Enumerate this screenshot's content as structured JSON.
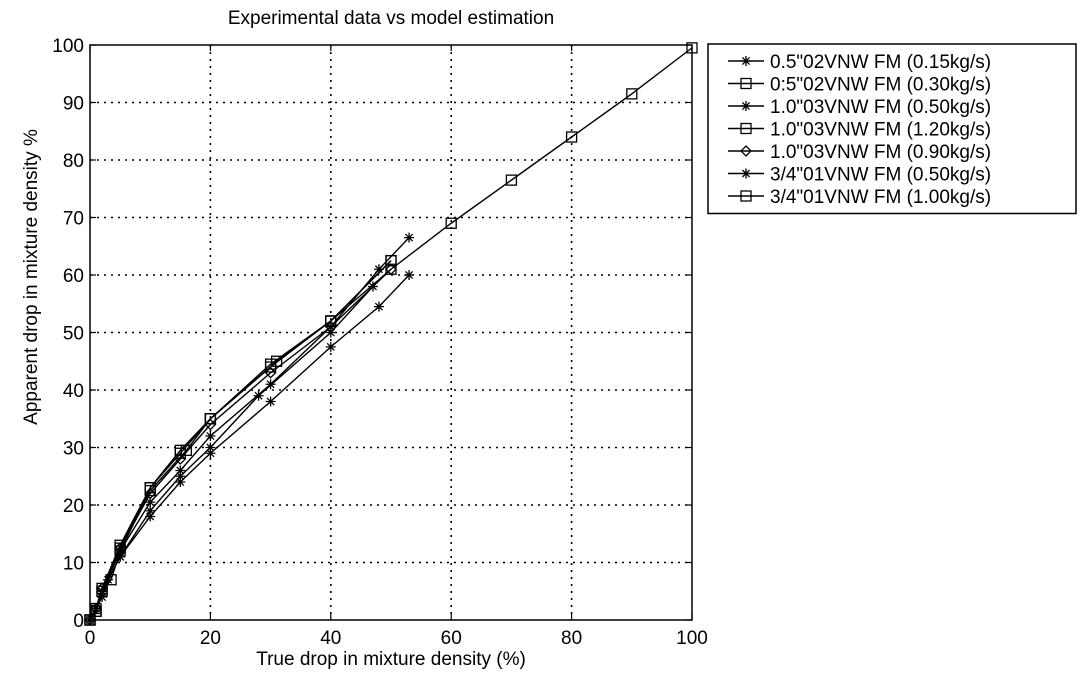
{
  "chart_data": {
    "type": "line",
    "title": "Experimental data vs model estimation",
    "xlabel": "True drop in mixture density (%)",
    "ylabel": "Apparent drop in mixture density %",
    "xlim": [
      0,
      100
    ],
    "ylim": [
      0,
      100
    ],
    "xticks": [
      0,
      20,
      40,
      60,
      80,
      100
    ],
    "yticks": [
      0,
      10,
      20,
      30,
      40,
      50,
      60,
      70,
      80,
      90,
      100
    ],
    "grid": true,
    "legend_position": "outside-top-right",
    "series": [
      {
        "name": "0.5\"02VNW FM (0.15kg/s)",
        "marker": "star",
        "color": "#000000",
        "x": [
          0,
          1,
          2,
          3,
          5,
          10,
          15,
          20,
          30,
          40,
          48,
          53
        ],
        "y": [
          0,
          2,
          4,
          7,
          11,
          18,
          24,
          29,
          38,
          47.5,
          54.5,
          60
        ]
      },
      {
        "name": "0:5\"02VNW FM (0.30kg/s)",
        "marker": "square",
        "color": "#000000",
        "x": [
          0,
          1,
          2,
          3.5,
          5,
          10,
          16,
          20,
          30,
          40,
          50
        ],
        "y": [
          0,
          1.5,
          5,
          7,
          12,
          22.5,
          29.5,
          35,
          44,
          52,
          62.5
        ]
      },
      {
        "name": "1.0\"03VNW FM (0.50kg/s)",
        "marker": "star",
        "color": "#000000",
        "x": [
          0,
          1,
          2,
          5,
          10,
          15,
          20,
          30,
          40,
          48,
          53
        ],
        "y": [
          0,
          2,
          5,
          12,
          20.5,
          26,
          32,
          41,
          51,
          61,
          66.5
        ]
      },
      {
        "name": "1.0\"03VNW FM (1.20kg/s)",
        "marker": "square",
        "color": "#000000",
        "x": [
          0,
          1,
          2,
          5,
          10,
          15,
          20,
          31,
          40,
          50
        ],
        "y": [
          0,
          1.5,
          5,
          12.5,
          23,
          29,
          35,
          45,
          52,
          62.5
        ]
      },
      {
        "name": "1.0\"03VNW FM (0.90kg/s)",
        "marker": "diamond",
        "color": "#000000",
        "x": [
          0,
          1,
          2,
          5,
          10,
          15,
          20,
          30,
          40,
          50
        ],
        "y": [
          0,
          2,
          5.5,
          12.5,
          22,
          28,
          34,
          43,
          51,
          61
        ]
      },
      {
        "name": "3/4\"01VNW FM (0.50kg/s)",
        "marker": "star",
        "color": "#000000",
        "x": [
          0,
          1,
          2,
          5,
          10,
          15,
          20,
          28,
          40,
          47
        ],
        "y": [
          0,
          2,
          5,
          11,
          19,
          25,
          30,
          39,
          50,
          58
        ]
      },
      {
        "name": "3/4\"01VNW FM (1.00kg/s)",
        "marker": "square",
        "color": "#000000",
        "x": [
          0,
          1,
          2,
          5,
          10,
          15,
          20,
          30,
          40,
          50,
          60,
          70,
          80,
          90,
          100
        ],
        "y": [
          0,
          2,
          5.5,
          13,
          23,
          29.5,
          35,
          44.5,
          52,
          61,
          69,
          76.5,
          84,
          91.5,
          99.5
        ]
      }
    ]
  }
}
